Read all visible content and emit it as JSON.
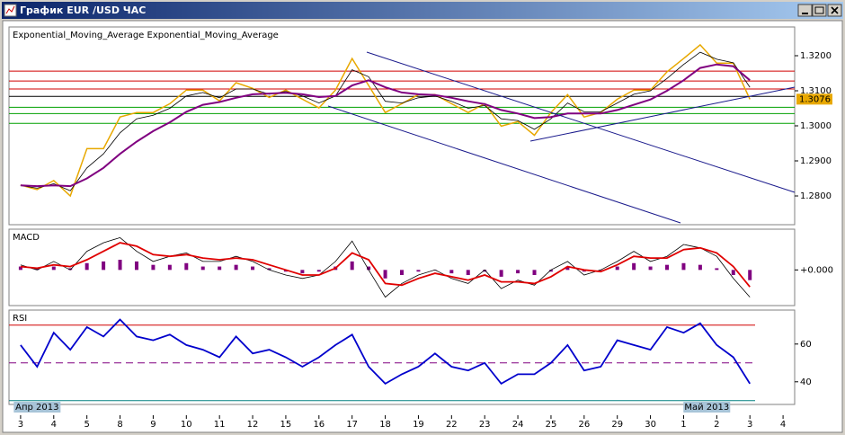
{
  "window": {
    "title": "График EUR /USD ЧАС"
  },
  "chart_data": [
    {
      "type": "line",
      "title": "Exponential_Moving_Average Exponential_Moving_Average",
      "x": [
        0,
        0.5,
        1,
        1.5,
        2,
        2.5,
        3,
        3.5,
        4,
        4.5,
        5,
        5.5,
        6,
        6.5,
        7,
        7.5,
        8,
        8.5,
        9,
        9.5,
        10,
        10.5,
        11,
        11.5,
        12,
        12.5,
        13,
        13.5,
        14,
        14.5,
        15,
        15.5,
        16,
        16.5,
        17,
        17.5,
        18,
        18.5,
        19,
        19.5,
        20,
        20.5,
        21,
        21.5,
        22
      ],
      "xlim": [
        -0.35,
        23.35
      ],
      "ylim": [
        1.2718,
        1.3282
      ],
      "yticks": [
        {
          "value": 1.28,
          "label": "1.2800"
        },
        {
          "value": 1.29,
          "label": "1.2900"
        },
        {
          "value": 1.3,
          "label": "1.3000"
        },
        {
          "value": 1.31,
          "label": "1.3100"
        },
        {
          "value": 1.32,
          "label": "1.3200"
        }
      ],
      "last_price": 1.3076,
      "hlines": [
        {
          "value": 1.3156,
          "color": "#d00000"
        },
        {
          "value": 1.3128,
          "color": "#d00000"
        },
        {
          "value": 1.3105,
          "color": "#d00000"
        },
        {
          "value": 1.3084,
          "color": "#000000"
        },
        {
          "value": 1.3053,
          "color": "#00a000"
        },
        {
          "value": 1.3035,
          "color": "#00a000"
        },
        {
          "value": 1.3007,
          "color": "#00a000"
        }
      ],
      "series": [
        {
          "color": "#e8a800",
          "width": 1.5,
          "values": [
            1.2831,
            1.2818,
            1.2844,
            1.28,
            1.2935,
            1.2935,
            1.3025,
            1.3038,
            1.3038,
            1.3063,
            1.3102,
            1.3102,
            1.3071,
            1.3123,
            1.3107,
            1.3081,
            1.3102,
            1.3076,
            1.3051,
            1.3102,
            1.3192,
            1.3115,
            1.3038,
            1.3063,
            1.3089,
            1.3089,
            1.3063,
            1.3038,
            1.3063,
            1.2999,
            1.3012,
            1.2973,
            1.3038,
            1.3089,
            1.3025,
            1.3038,
            1.3076,
            1.3102,
            1.3102,
            1.3154,
            1.3192,
            1.3231,
            1.3179,
            1.3179,
            1.3076
          ]
        },
        {
          "color": "#000000",
          "width": 0.8,
          "values": [
            1.283,
            1.2822,
            1.2835,
            1.2815,
            1.288,
            1.292,
            1.298,
            1.302,
            1.303,
            1.305,
            1.3085,
            1.3095,
            1.308,
            1.3105,
            1.3105,
            1.309,
            1.3098,
            1.3085,
            1.3065,
            1.3085,
            1.316,
            1.314,
            1.307,
            1.3065,
            1.308,
            1.3085,
            1.307,
            1.305,
            1.3058,
            1.302,
            1.3015,
            1.299,
            1.302,
            1.3065,
            1.304,
            1.304,
            1.3065,
            1.309,
            1.31,
            1.3135,
            1.3175,
            1.321,
            1.319,
            1.318,
            1.311
          ]
        },
        {
          "color": "#800080",
          "width": 2,
          "values": [
            1.283,
            1.2828,
            1.283,
            1.2828,
            1.285,
            1.288,
            1.292,
            1.2955,
            1.2985,
            1.301,
            1.304,
            1.306,
            1.3068,
            1.308,
            1.309,
            1.3092,
            1.3094,
            1.309,
            1.3082,
            1.3085,
            1.3115,
            1.313,
            1.311,
            1.3095,
            1.309,
            1.3088,
            1.308,
            1.307,
            1.3062,
            1.3045,
            1.3035,
            1.3022,
            1.3025,
            1.3035,
            1.3035,
            1.3035,
            1.3045,
            1.306,
            1.3075,
            1.31,
            1.313,
            1.3165,
            1.3175,
            1.317,
            1.313
          ]
        }
      ]
    },
    {
      "type": "line",
      "title": "MACD",
      "x": [
        0,
        0.5,
        1,
        1.5,
        2,
        2.5,
        3,
        3.5,
        4,
        4.5,
        5,
        5.5,
        6,
        6.5,
        7,
        7.5,
        8,
        8.5,
        9,
        9.5,
        10,
        10.5,
        11,
        11.5,
        12,
        12.5,
        13,
        13.5,
        14,
        14.5,
        15,
        15.5,
        16,
        16.5,
        17,
        17.5,
        18,
        18.5,
        19,
        19.5,
        20,
        20.5,
        21,
        21.5,
        22
      ],
      "xlim": [
        -0.35,
        23.35
      ],
      "ylim": [
        -0.0021,
        0.0024
      ],
      "yticks": [
        {
          "value": 0,
          "label": "+0.000"
        }
      ],
      "series": [
        {
          "color": "#800080",
          "style": "bar",
          "values": [
            0.0002,
            0.0001,
            0.0002,
            0.0001,
            0.0004,
            0.0005,
            0.0006,
            0.0005,
            0.0003,
            0.0003,
            0.0004,
            0.0002,
            0.0002,
            0.0003,
            0.0002,
            0.0001,
            -0.0001,
            -0.0002,
            -0.0001,
            0.0002,
            0.0005,
            0.0002,
            -0.0005,
            -0.0003,
            -0.0001,
            0,
            -0.0002,
            -0.0003,
            -0.0001,
            -0.0004,
            -0.0002,
            -0.0003,
            -0.0001,
            0.0002,
            -0.0001,
            0,
            0.0002,
            0.0004,
            0.0002,
            0.0003,
            0.0004,
            0.0003,
            0.0001,
            -0.0003,
            -0.0006
          ]
        },
        {
          "color": "#000000",
          "width": 0.8,
          "values": [
            0.0003,
            0,
            0.0005,
            0,
            0.0011,
            0.0016,
            0.0019,
            0.0011,
            0.0005,
            0.0008,
            0.001,
            0.0005,
            0.0005,
            0.0008,
            0.0005,
            0,
            -0.0003,
            -0.0005,
            -0.0003,
            0.0005,
            0.0017,
            0,
            -0.0016,
            -0.0008,
            -0.0003,
            0,
            -0.0005,
            -0.0008,
            0,
            -0.0011,
            -0.0006,
            -0.0009,
            0,
            0.0005,
            -0.0003,
            0,
            0.0005,
            0.0011,
            0.0005,
            0.0008,
            0.0015,
            0.0013,
            0.0008,
            -0.0005,
            -0.0016
          ]
        },
        {
          "color": "#e00000",
          "width": 1.8,
          "values": [
            0.0002,
            0.0001,
            0.0003,
            0.0002,
            0.0006,
            0.0011,
            0.0016,
            0.0014,
            0.0009,
            0.0008,
            0.0009,
            0.0007,
            0.0006,
            0.0007,
            0.0006,
            0.0003,
            0,
            -0.0003,
            -0.0003,
            0.0001,
            0.001,
            0.0006,
            -0.0008,
            -0.0009,
            -0.0005,
            -0.0002,
            -0.0004,
            -0.0006,
            -0.0003,
            -0.0007,
            -0.0007,
            -0.0008,
            -0.0004,
            0.0002,
            0,
            -0.0001,
            0.0003,
            0.0008,
            0.0007,
            0.0007,
            0.0012,
            0.0013,
            0.001,
            0.0002,
            -0.001
          ]
        }
      ]
    },
    {
      "type": "line",
      "title": "RSI",
      "x": [
        0,
        0.5,
        1,
        1.5,
        2,
        2.5,
        3,
        3.5,
        4,
        4.5,
        5,
        5.5,
        6,
        6.5,
        7,
        7.5,
        8,
        8.5,
        9,
        9.5,
        10,
        10.5,
        11,
        11.5,
        12,
        12.5,
        13,
        13.5,
        14,
        14.5,
        15,
        15.5,
        16,
        16.5,
        17,
        17.5,
        18,
        18.5,
        19,
        19.5,
        20,
        20.5,
        21,
        21.5,
        22
      ],
      "xlim": [
        -0.35,
        23.35
      ],
      "ylim": [
        28,
        78
      ],
      "yticks": [
        40,
        60
      ],
      "hlines": [
        {
          "value": 70,
          "color": "#d00000"
        },
        {
          "value": 50,
          "color": "#800080",
          "dashed": true
        },
        {
          "value": 30,
          "color": "#008080"
        }
      ],
      "xticks": [
        {
          "value": 0,
          "label": "3"
        },
        {
          "value": 1,
          "label": "4"
        },
        {
          "value": 2,
          "label": "5"
        },
        {
          "value": 3,
          "label": "8"
        },
        {
          "value": 4,
          "label": "9"
        },
        {
          "value": 5,
          "label": "10"
        },
        {
          "value": 6,
          "label": "11"
        },
        {
          "value": 7,
          "label": "12"
        },
        {
          "value": 8,
          "label": "15"
        },
        {
          "value": 9,
          "label": "16"
        },
        {
          "value": 10,
          "label": "17"
        },
        {
          "value": 11,
          "label": "18"
        },
        {
          "value": 12,
          "label": "19"
        },
        {
          "value": 13,
          "label": "22"
        },
        {
          "value": 14,
          "label": "23"
        },
        {
          "value": 15,
          "label": "24"
        },
        {
          "value": 16,
          "label": "25"
        },
        {
          "value": 17,
          "label": "26"
        },
        {
          "value": 18,
          "label": "29"
        },
        {
          "value": 19,
          "label": "30"
        },
        {
          "value": 20,
          "label": "1"
        },
        {
          "value": 21,
          "label": "2"
        },
        {
          "value": 22,
          "label": "3"
        },
        {
          "value": 23,
          "label": "4"
        }
      ],
      "annotations": [
        {
          "text": "Апр 2013",
          "x": 0.5
        },
        {
          "text": "Май 2013",
          "x": 20.7
        }
      ],
      "series": [
        {
          "color": "#0000cc",
          "width": 1.8,
          "values": [
            59.5,
            48,
            66,
            57,
            69,
            64,
            73,
            64,
            62,
            65,
            59.5,
            57,
            53,
            64,
            55,
            57,
            53,
            48,
            53,
            59.5,
            65,
            48,
            39,
            44,
            48,
            55,
            48,
            46,
            50,
            39,
            44,
            44,
            50,
            59.5,
            46,
            48,
            62,
            59.5,
            57,
            69,
            66,
            71,
            59.5,
            53,
            39
          ]
        }
      ]
    }
  ]
}
